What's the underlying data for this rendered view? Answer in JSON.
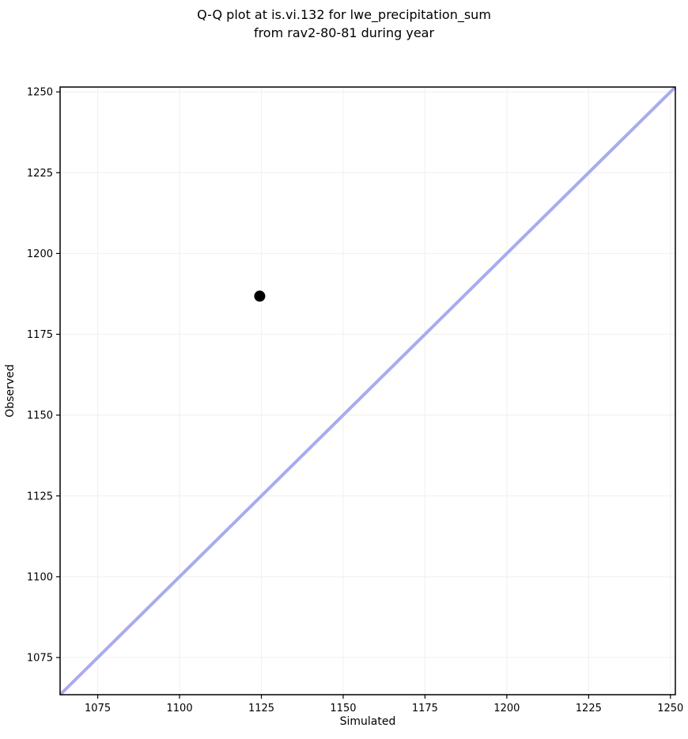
{
  "figure": {
    "title_lines": [
      "Q-Q plot at is.vi.132 for lwe_precipitation_sum",
      "from rav2-80-81 during year"
    ]
  },
  "chart_data": {
    "type": "scatter",
    "title": "Q-Q plot at is.vi.132 for lwe_precipitation_sum from rav2-80-81 during year",
    "xlabel": "Simulated",
    "ylabel": "Observed",
    "xlim": [
      1063.5,
      1251.5
    ],
    "ylim": [
      1063.5,
      1251.5
    ],
    "xticks": [
      1075,
      1100,
      1125,
      1150,
      1175,
      1200,
      1225,
      1250
    ],
    "yticks": [
      1075,
      1100,
      1125,
      1150,
      1175,
      1200,
      1225,
      1250
    ],
    "grid": true,
    "grid_color": "#f2f2f2",
    "background": "#ffffff",
    "legend": false,
    "series": [
      {
        "name": "identity-line",
        "type": "line",
        "color": "#aaaaef",
        "width": 4,
        "points": [
          {
            "x": 1063.5,
            "y": 1063.5
          },
          {
            "x": 1251.5,
            "y": 1251.5
          }
        ]
      },
      {
        "name": "quantile-points",
        "type": "scatter",
        "marker": "circle",
        "color": "#000000",
        "marker_radius": 7,
        "points": [
          {
            "x": 1124.5,
            "y": 1186.8
          }
        ]
      }
    ]
  }
}
